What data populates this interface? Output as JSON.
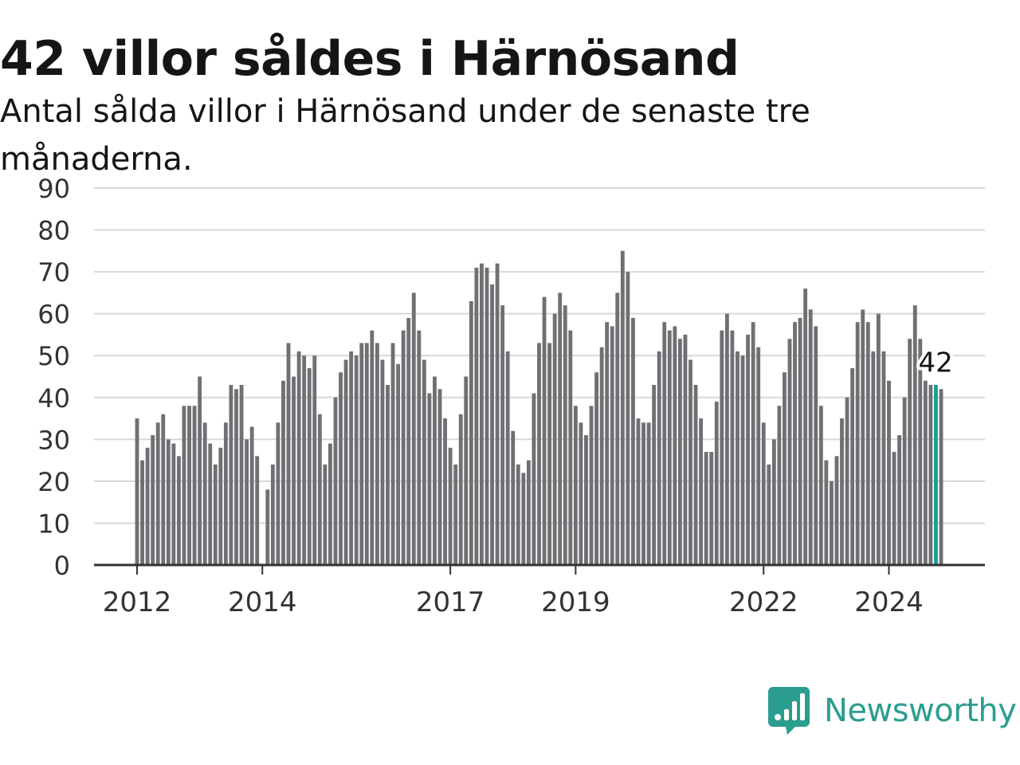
{
  "title": "42 villor såldes i Härnösand",
  "subtitle": "Antal sålda villor i Härnösand under de senaste tre månaderna.",
  "brand": {
    "name": "Newsworthy",
    "color": "#2a9d8f",
    "icon": "bar-chart-speech-bubble-icon"
  },
  "colors": {
    "bar": "#707074",
    "highlight": "#1a9e94",
    "grid": "#d8d8d8"
  },
  "chart_data": {
    "type": "bar",
    "title": "42 villor såldes i Härnösand",
    "subtitle": "Antal sålda villor i Härnösand under de senaste tre månaderna.",
    "xlabel": "",
    "ylabel": "",
    "ylim": [
      0,
      90
    ],
    "yticks": [
      0,
      10,
      20,
      30,
      40,
      50,
      60,
      70,
      80,
      90
    ],
    "grid": true,
    "xticks": [
      {
        "label": "2012",
        "date": "2012-01"
      },
      {
        "label": "2014",
        "date": "2014-01"
      },
      {
        "label": "2017",
        "date": "2017-01"
      },
      {
        "label": "2019",
        "date": "2019-01"
      },
      {
        "label": "2022",
        "date": "2022-01"
      },
      {
        "label": "2024",
        "date": "2024-01"
      }
    ],
    "x_start": "2012-01",
    "x_end": "2024-10",
    "highlight": {
      "date": "2024-10",
      "value": 42,
      "label": "42"
    },
    "values": [
      35,
      25,
      28,
      31,
      34,
      36,
      30,
      29,
      26,
      38,
      38,
      38,
      45,
      34,
      29,
      24,
      28,
      34,
      43,
      42,
      43,
      30,
      33,
      26,
      0,
      18,
      24,
      34,
      44,
      53,
      45,
      51,
      50,
      47,
      50,
      36,
      24,
      29,
      40,
      46,
      49,
      51,
      50,
      53,
      53,
      56,
      53,
      49,
      43,
      53,
      48,
      56,
      59,
      65,
      56,
      49,
      41,
      45,
      42,
      35,
      28,
      24,
      36,
      45,
      63,
      71,
      72,
      71,
      67,
      72,
      62,
      51,
      32,
      24,
      22,
      25,
      41,
      53,
      64,
      53,
      60,
      65,
      62,
      56,
      38,
      34,
      31,
      38,
      46,
      52,
      58,
      57,
      65,
      75,
      70,
      59,
      35,
      34,
      34,
      43,
      51,
      58,
      56,
      57,
      54,
      55,
      49,
      43,
      35,
      27,
      27,
      39,
      56,
      60,
      56,
      51,
      50,
      55,
      58,
      52,
      34,
      24,
      30,
      38,
      46,
      54,
      58,
      59,
      66,
      61,
      57,
      38,
      25,
      20,
      26,
      35,
      40,
      47,
      58,
      61,
      58,
      51,
      60,
      51,
      44,
      27,
      31,
      40,
      54,
      62,
      54,
      44,
      43,
      43,
      42
    ]
  }
}
